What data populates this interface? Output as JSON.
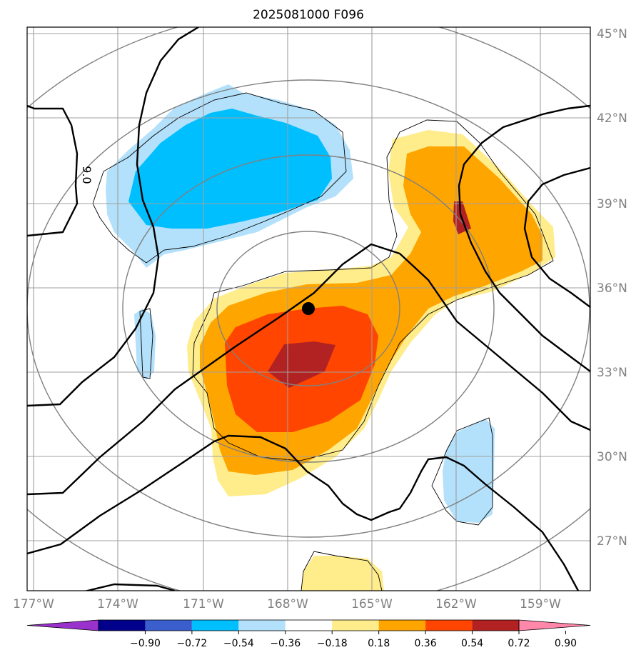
{
  "title": "2025081000 F096",
  "lat_labels": [
    "45°N",
    "42°N",
    "39°N",
    "36°N",
    "33°N",
    "30°N",
    "27°N"
  ],
  "lon_labels": [
    "177°W",
    "174°W",
    "171°W",
    "168°W",
    "165°W",
    "162°W",
    "159°W"
  ],
  "colorbar": {
    "ticks": [
      "−0.90",
      "−0.72",
      "−0.54",
      "−0.36",
      "−0.18",
      "0.18",
      "0.36",
      "0.54",
      "0.72",
      "0.90"
    ],
    "colors": [
      "#9932cc",
      "#00008b",
      "#3a5fcd",
      "#00bfff",
      "#b3e0fa",
      "#ffffff",
      "#ffec8b",
      "#ffa500",
      "#ff4500",
      "#b22222",
      "#ff88aa"
    ]
  },
  "contour_label": "9.0",
  "storm_center_marker": "black-dot",
  "colors": {
    "pos_1": "#ffec8b",
    "pos_2": "#ffa500",
    "pos_3": "#ff4500",
    "pos_4": "#b22222",
    "neg_1": "#b3e0fa",
    "neg_2": "#00bfff",
    "neg_3": "#00c8e8",
    "grid": "#a0a0a0",
    "circle": "#808080"
  }
}
